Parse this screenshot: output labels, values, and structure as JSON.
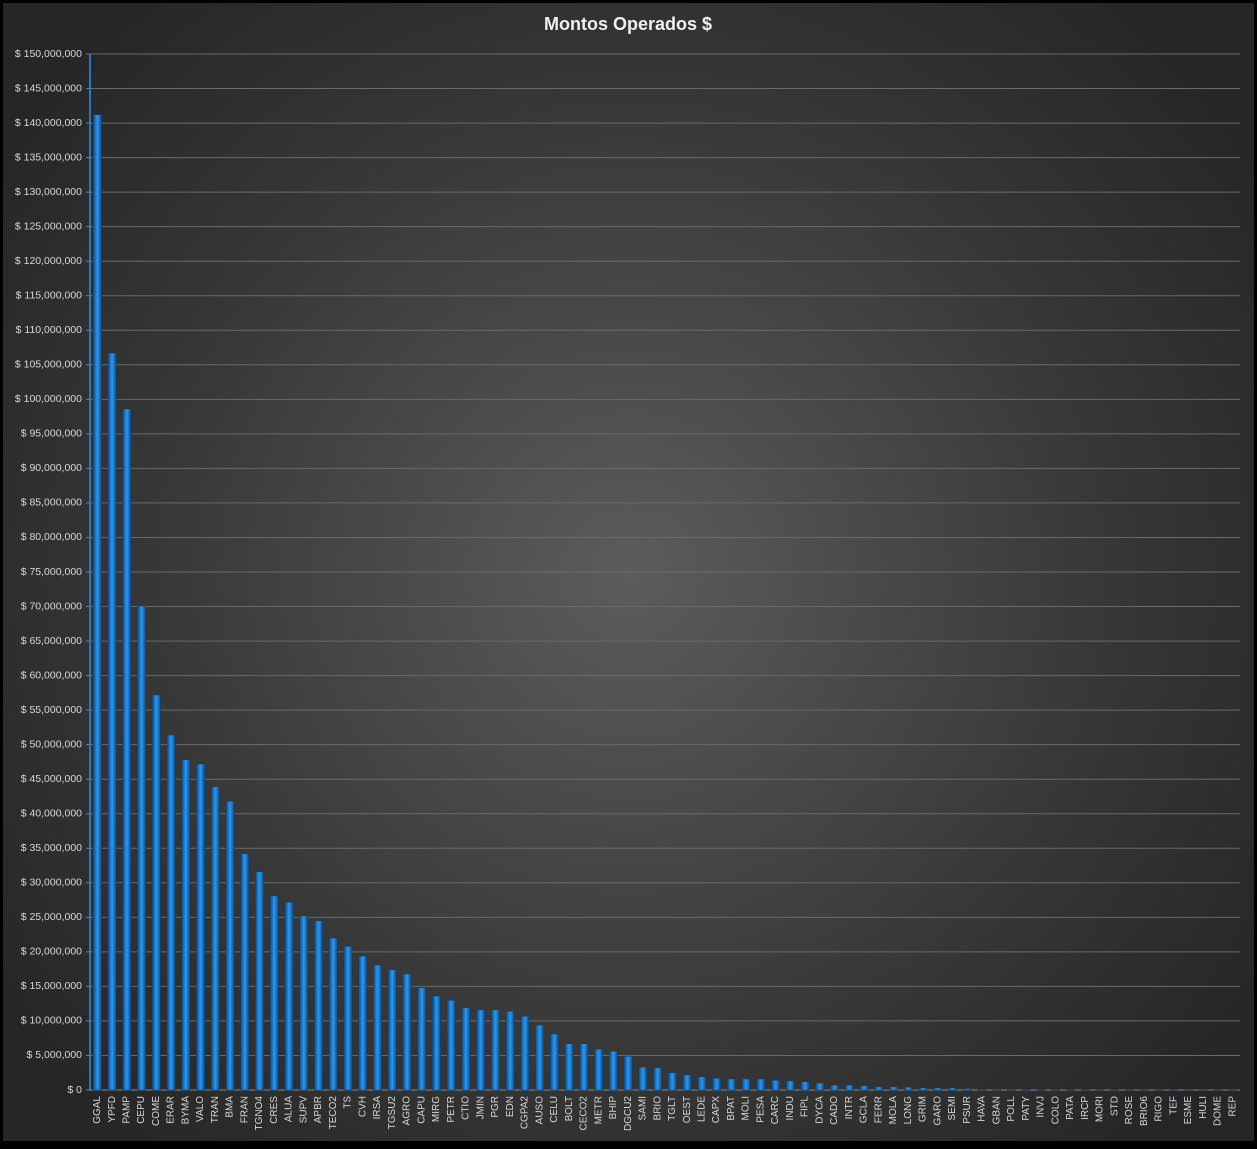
{
  "chart_data": {
    "type": "bar",
    "title": "Montos  Operados  $",
    "categories": [
      "GGAL",
      "YPFD",
      "PAMP",
      "CEPU",
      "COME",
      "ERAR",
      "BYMA",
      "VALO",
      "TRAN",
      "BMA",
      "FRAN",
      "TGNO4",
      "CRES",
      "ALUA",
      "SUPV",
      "APBR",
      "TECO2",
      "TS",
      "CVH",
      "IRSA",
      "TGSU2",
      "AGRO",
      "CAPU",
      "MIRG",
      "PETR",
      "CTIO",
      "JMIN",
      "PGR",
      "EDN",
      "CGPA2",
      "AUSO",
      "CELU",
      "BOLT",
      "CECO2",
      "METR",
      "BHIP",
      "DGCU2",
      "SAMI",
      "BRIO",
      "TGLT",
      "OEST",
      "LEDE",
      "CAPX",
      "BPAT",
      "MOLI",
      "PESA",
      "CARC",
      "INDU",
      "FIPL",
      "DYCA",
      "CADO",
      "INTR",
      "GCLA",
      "FERR",
      "MOLA",
      "LONG",
      "GRIM",
      "GARO",
      "SEMI",
      "PSUR",
      "HAVA",
      "GBAN",
      "POLL",
      "PATY",
      "INVJ",
      "COLO",
      "PATA",
      "IRCP",
      "MORI",
      "STD",
      "ROSE",
      "BRIO6",
      "RIGO",
      "TEF",
      "ESME",
      "HULI",
      "DOME",
      "REP"
    ],
    "values": [
      141200000,
      106700000,
      98600000,
      70100000,
      57200000,
      51400000,
      47800000,
      47200000,
      43900000,
      41800000,
      34200000,
      31600000,
      28100000,
      27200000,
      25200000,
      24500000,
      22000000,
      20800000,
      19400000,
      18100000,
      17400000,
      16800000,
      14800000,
      13600000,
      13000000,
      11900000,
      11600000,
      11600000,
      11400000,
      10700000,
      9400000,
      8100000,
      6700000,
      6700000,
      5900000,
      5600000,
      4900000,
      3300000,
      3200000,
      2500000,
      2200000,
      1900000,
      1700000,
      1600000,
      1600000,
      1600000,
      1400000,
      1300000,
      1200000,
      1000000,
      700000,
      700000,
      600000,
      450000,
      450000,
      400000,
      300000,
      300000,
      300000,
      200000,
      100000,
      100000,
      100000,
      80000,
      60000,
      50000,
      40000,
      30000,
      20000,
      20000,
      10000,
      10000,
      10000,
      10000,
      5000,
      5000,
      3000,
      2000
    ],
    "color": "#1a7fd6",
    "ylim": [
      0,
      150000000
    ],
    "yticks": [
      {
        "value": 0,
        "label": "$ 0"
      },
      {
        "value": 5000000,
        "label": "$ 5,000,000"
      },
      {
        "value": 10000000,
        "label": "$ 10,000,000"
      },
      {
        "value": 15000000,
        "label": "$ 15,000,000"
      },
      {
        "value": 20000000,
        "label": "$ 20,000,000"
      },
      {
        "value": 25000000,
        "label": "$ 25,000,000"
      },
      {
        "value": 30000000,
        "label": "$ 30,000,000"
      },
      {
        "value": 35000000,
        "label": "$ 35,000,000"
      },
      {
        "value": 40000000,
        "label": "$ 40,000,000"
      },
      {
        "value": 45000000,
        "label": "$ 45,000,000"
      },
      {
        "value": 50000000,
        "label": "$ 50,000,000"
      },
      {
        "value": 55000000,
        "label": "$ 55,000,000"
      },
      {
        "value": 60000000,
        "label": "$ 60,000,000"
      },
      {
        "value": 65000000,
        "label": "$ 65,000,000"
      },
      {
        "value": 70000000,
        "label": "$ 70,000,000"
      },
      {
        "value": 75000000,
        "label": "$ 75,000,000"
      },
      {
        "value": 80000000,
        "label": "$ 80,000,000"
      },
      {
        "value": 85000000,
        "label": "$ 85,000,000"
      },
      {
        "value": 90000000,
        "label": "$ 90,000,000"
      },
      {
        "value": 95000000,
        "label": "$ 95,000,000"
      },
      {
        "value": 100000000,
        "label": "$ 100,000,000"
      },
      {
        "value": 105000000,
        "label": "$ 105,000,000"
      },
      {
        "value": 110000000,
        "label": "$ 110,000,000"
      },
      {
        "value": 115000000,
        "label": "$ 115,000,000"
      },
      {
        "value": 120000000,
        "label": "$ 120,000,000"
      },
      {
        "value": 125000000,
        "label": "$ 125,000,000"
      },
      {
        "value": 130000000,
        "label": "$ 130,000,000"
      },
      {
        "value": 135000000,
        "label": "$ 135,000,000"
      },
      {
        "value": 140000000,
        "label": "$ 140,000,000"
      },
      {
        "value": 145000000,
        "label": "$ 145,000,000"
      },
      {
        "value": 150000000,
        "label": "$ 150,000,000"
      }
    ],
    "grid": true
  }
}
